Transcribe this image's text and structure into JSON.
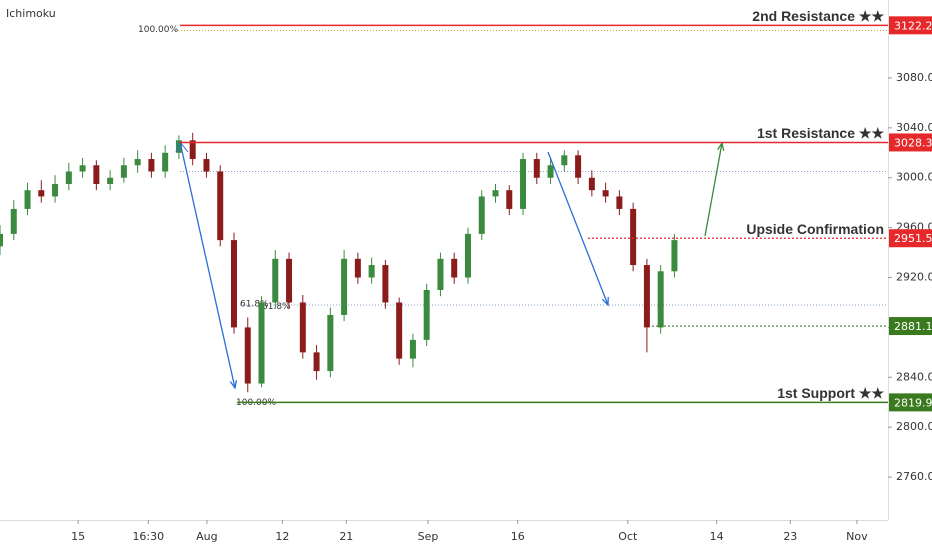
{
  "chart_data": {
    "type": "candlestick",
    "indicator": "Ichimoku",
    "x": [
      0,
      1.55,
      3.1,
      4.65,
      6.2,
      7.75,
      9.3,
      10.85,
      12.4,
      13.95,
      15.5,
      17.05,
      18.6,
      20.15,
      21.7,
      23.25,
      24.8,
      26.35,
      27.9,
      29.45,
      31,
      32.55,
      34.1,
      35.65,
      37.2,
      38.75,
      40.3,
      41.85,
      43.4,
      44.95,
      46.5,
      48.05,
      49.6,
      51.15,
      52.7,
      54.25,
      55.8,
      57.35,
      58.9,
      60.45,
      62,
      63.55,
      65.1,
      66.65,
      68.2,
      69.75,
      71.3,
      72.85,
      74.4,
      75.95
    ],
    "open": [
      2945,
      2955,
      2975,
      2990,
      2985,
      2995,
      3005,
      3010,
      2995,
      3000,
      3010,
      3015,
      3005,
      3020,
      3030,
      3015,
      3005,
      2950,
      2880,
      2835,
      2900,
      2935,
      2900,
      2860,
      2845,
      2890,
      2935,
      2920,
      2930,
      2900,
      2855,
      2870,
      2910,
      2935,
      2920,
      2955,
      2985,
      2990,
      2975,
      3015,
      3000,
      3010,
      3018,
      3000,
      2990,
      2985,
      2975,
      2930,
      2880,
      2925
    ],
    "high": [
      2962,
      2982,
      2996,
      2998,
      3002,
      3012,
      3016,
      3014,
      3006,
      3016,
      3022,
      3020,
      3026,
      3034,
      3036,
      3020,
      3010,
      2956,
      2888,
      2905,
      2942,
      2940,
      2906,
      2866,
      2896,
      2942,
      2940,
      2936,
      2934,
      2904,
      2875,
      2915,
      2940,
      2940,
      2960,
      2990,
      2995,
      2994,
      3020,
      3020,
      3015,
      3022,
      3022,
      3006,
      2996,
      2990,
      2980,
      2935,
      2930,
      2955
    ],
    "low": [
      2938,
      2950,
      2970,
      2980,
      2980,
      2990,
      3000,
      2990,
      2990,
      2996,
      3004,
      3000,
      3000,
      3015,
      3010,
      3000,
      2945,
      2875,
      2828,
      2832,
      2895,
      2895,
      2855,
      2838,
      2840,
      2885,
      2915,
      2915,
      2895,
      2850,
      2848,
      2865,
      2905,
      2915,
      2915,
      2950,
      2980,
      2970,
      2970,
      2995,
      2995,
      3005,
      2995,
      2985,
      2980,
      2970,
      2925,
      2860,
      2875,
      2920
    ],
    "close": [
      2955,
      2975,
      2990,
      2985,
      2995,
      3005,
      3010,
      2995,
      3000,
      3010,
      3015,
      3005,
      3020,
      3030,
      3015,
      3005,
      2950,
      2880,
      2835,
      2900,
      2935,
      2900,
      2860,
      2845,
      2890,
      2935,
      2920,
      2930,
      2900,
      2855,
      2870,
      2910,
      2935,
      2920,
      2955,
      2985,
      2990,
      2975,
      3015,
      3000,
      3010,
      3018,
      3000,
      2990,
      2985,
      2975,
      2930,
      2880,
      2925,
      2950
    ],
    "up_color": "#3a8a3f",
    "down_color": "#8b1c1c",
    "xlim": [
      0,
      100
    ],
    "xticks": [
      {
        "value": 8.8,
        "label": "15"
      },
      {
        "value": 16.7,
        "label": "16:30"
      },
      {
        "value": 23.3,
        "label": "Aug"
      },
      {
        "value": 31.8,
        "label": "12"
      },
      {
        "value": 39,
        "label": "21"
      },
      {
        "value": 48.2,
        "label": "Sep"
      },
      {
        "value": 58.3,
        "label": "16"
      },
      {
        "value": 70.7,
        "label": "Oct"
      },
      {
        "value": 80.7,
        "label": "14"
      },
      {
        "value": 89,
        "label": "23"
      },
      {
        "value": 96.5,
        "label": "Nov"
      }
    ],
    "ylim": [
      2725.6,
      3142.5
    ],
    "yticks": [
      {
        "value": 2760,
        "label": "2760.0"
      },
      {
        "value": 2800,
        "label": "2800.0"
      },
      {
        "value": 2840,
        "label": "2840.0"
      },
      {
        "value": 2880,
        "label": "2880.0"
      },
      {
        "value": 2920,
        "label": "2920.0"
      },
      {
        "value": 2960,
        "label": "2960.0"
      },
      {
        "value": 3000,
        "label": "3000.0"
      },
      {
        "value": 3040,
        "label": "3040.0"
      },
      {
        "value": 3080,
        "label": "3080.0"
      }
    ],
    "levels": [
      {
        "name": "2nd Resistance ★★",
        "value": 3122.2,
        "color": "#e5292b",
        "style": "solid"
      },
      {
        "name": "1st Resistance ★★",
        "value": 3028.3,
        "color": "#e5292b",
        "style": "solid"
      },
      {
        "name": "Upside Confirmation",
        "value": 2951.5,
        "color": "#e5292b",
        "style": "dotted"
      },
      {
        "value": 2881.1,
        "color": "#3a7a1f",
        "style": "dotted"
      },
      {
        "name": "1st Support ★★",
        "value": 2819.9,
        "color": "#3a7a1f",
        "style": "solid"
      }
    ],
    "fib_labels": [
      "100.00%",
      "61.8%",
      "61.8%",
      "100.00%"
    ]
  }
}
